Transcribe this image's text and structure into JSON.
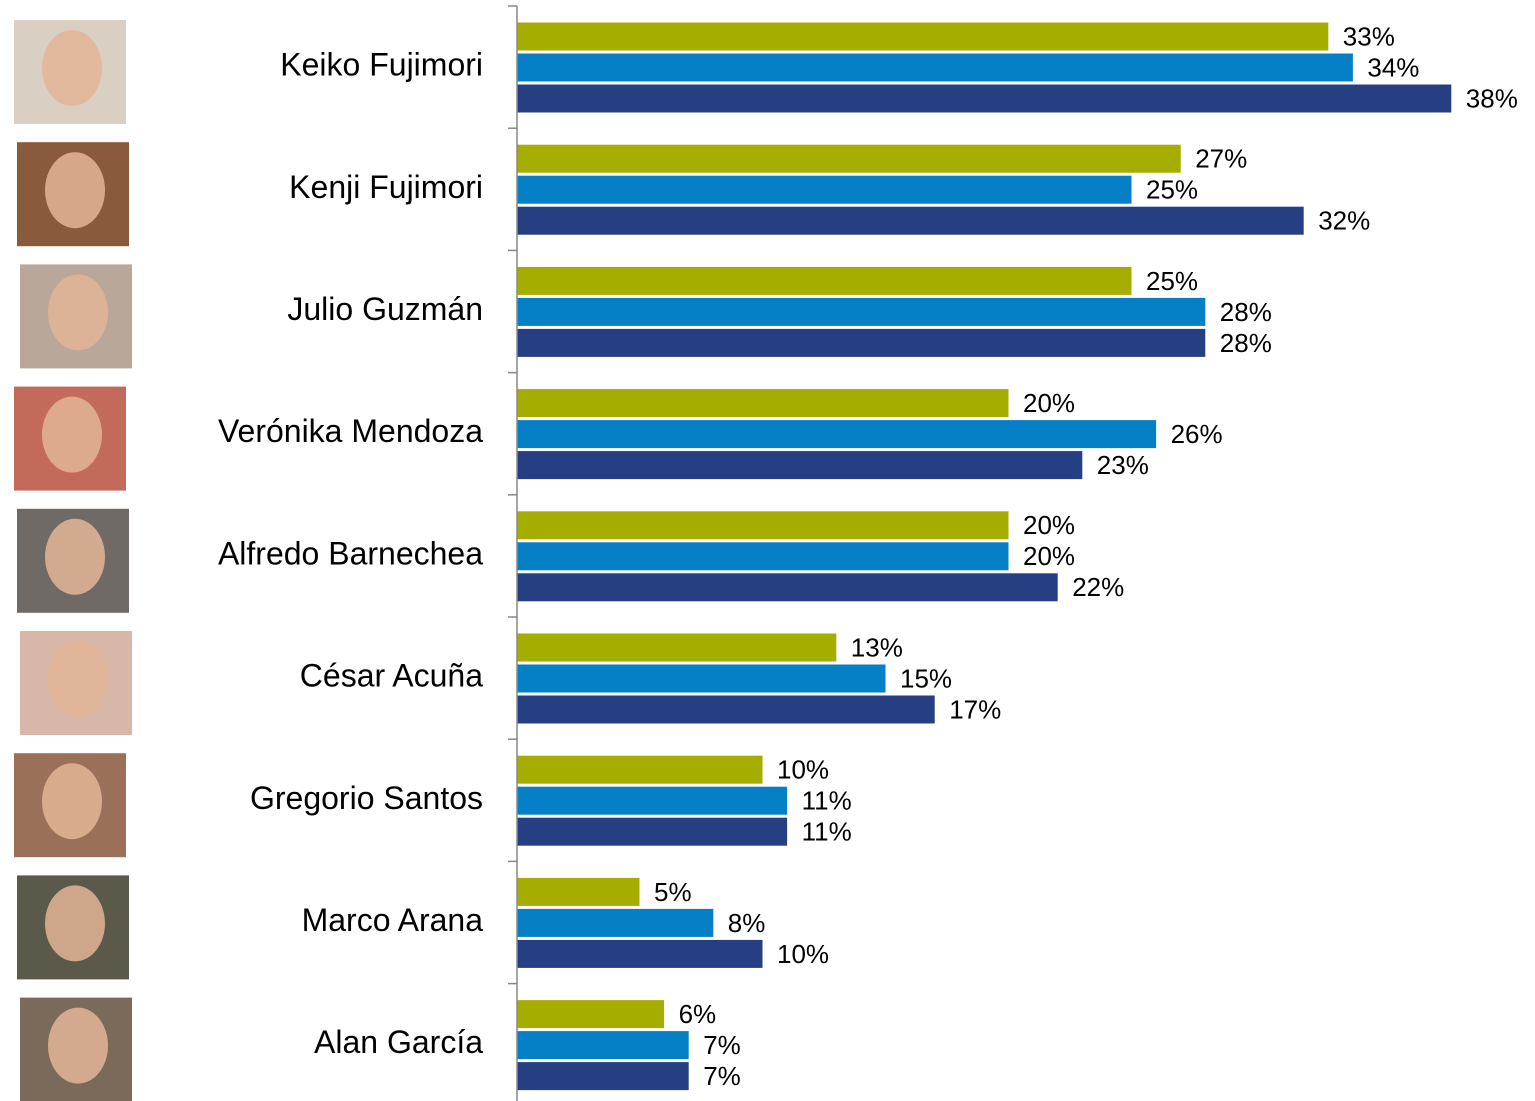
{
  "chart_data": {
    "type": "bar",
    "orientation": "horizontal",
    "categories": [
      "Keiko Fujimori",
      "Kenji Fujimori",
      "Julio Guzmán",
      "Verónika Mendoza",
      "Alfredo Barnechea",
      "César Acuña",
      "Gregorio Santos",
      "Marco Arana",
      "Alan García"
    ],
    "series": [
      {
        "color": "#a5ae00",
        "values": [
          33,
          27,
          25,
          20,
          20,
          13,
          10,
          5,
          6
        ],
        "value_labels": [
          "33%",
          "27%",
          "25%",
          "20%",
          "20%",
          "13%",
          "10%",
          "5%",
          "6%"
        ]
      },
      {
        "color": "#0580c6",
        "values": [
          34,
          25,
          28,
          26,
          20,
          15,
          11,
          8,
          7
        ],
        "value_labels": [
          "34%",
          "25%",
          "28%",
          "26%",
          "20%",
          "15%",
          "11%",
          "8%",
          "7%"
        ]
      },
      {
        "color": "#253f82",
        "values": [
          38,
          32,
          28,
          23,
          22,
          17,
          11,
          10,
          7
        ],
        "value_labels": [
          "38%",
          "32%",
          "28%",
          "23%",
          "22%",
          "17%",
          "11%",
          "10%",
          "7%"
        ]
      }
    ],
    "xlim": [
      0,
      40
    ]
  }
}
